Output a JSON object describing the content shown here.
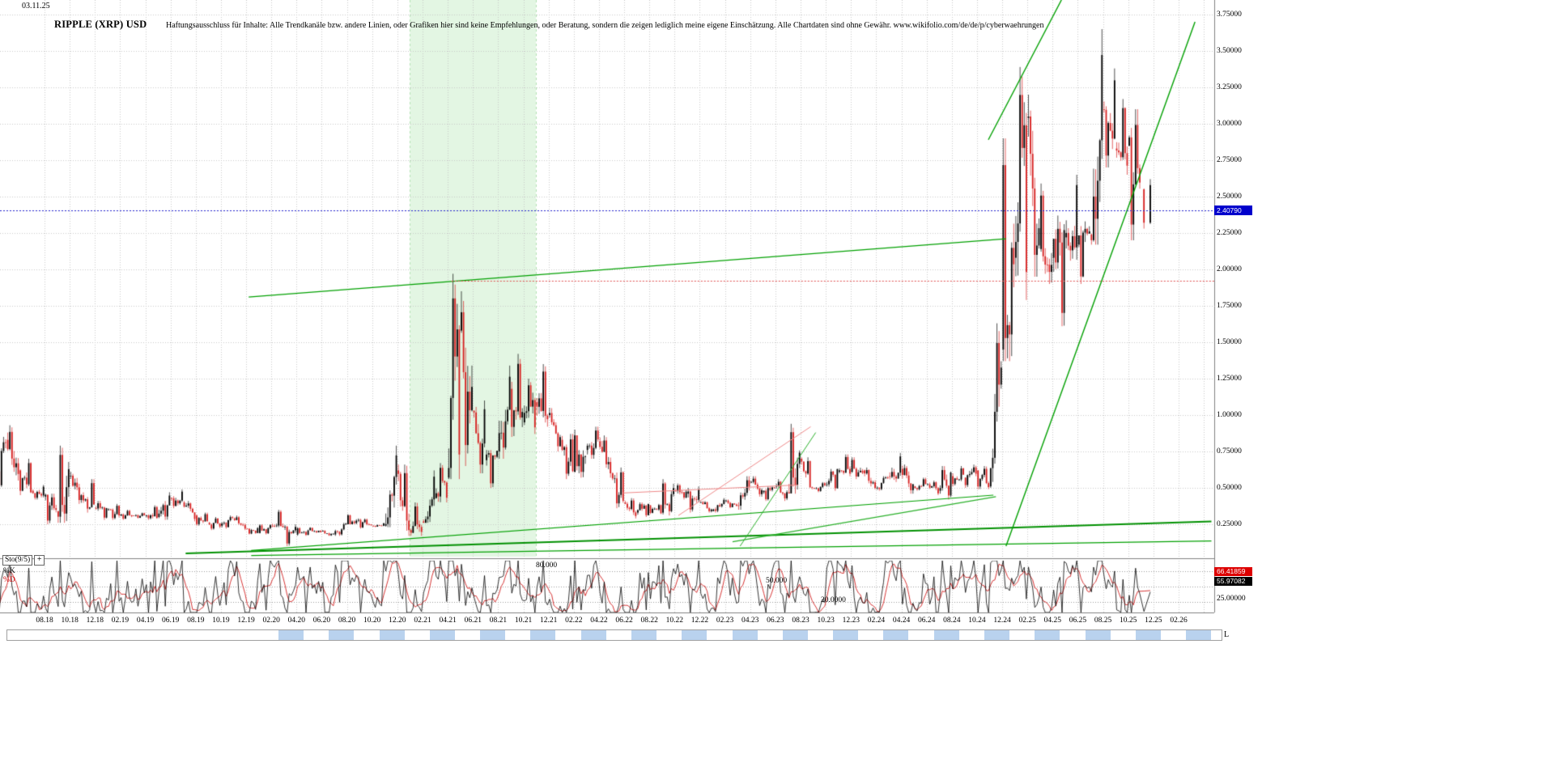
{
  "header": {
    "date": "03.11.25",
    "title": "RIPPLE (XRP) USD",
    "disclaimer": "Haftungsausschluss für Inhalte: Alle Trendkanäle bzw. andere Linien, oder Grafiken hier sind keine Empfehlungen, oder Beratung, sondern die zeigen lediglich meine eigene Einschätzung. Alle Chartdaten sind ohne Gewähr.  www.wikifolio.com/de/de/p/cyberwaehrungen"
  },
  "price_axis": {
    "ticks": [
      "3.75000",
      "3.50000",
      "3.25000",
      "3.00000",
      "2.75000",
      "2.50000",
      "2.25000",
      "2.00000",
      "1.75000",
      "1.50000",
      "1.25000",
      "1.00000",
      "0.75000",
      "0.50000",
      "0.25000"
    ],
    "badge_label": "2.40790",
    "badge_color": "#0000cc"
  },
  "time_axis": {
    "ticks": [
      "08.18",
      "10.18",
      "12.18",
      "02.19",
      "04.19",
      "06.19",
      "08.19",
      "10.19",
      "12.19",
      "02.20",
      "04.20",
      "06.20",
      "08.20",
      "10.20",
      "12.20",
      "02.21",
      "04.21",
      "06.21",
      "08.21",
      "10.21",
      "12.21",
      "02.22",
      "04.22",
      "06.22",
      "08.22",
      "10.22",
      "12.22",
      "02.23",
      "04.23",
      "06.23",
      "08.23",
      "10.23",
      "12.23",
      "02.24",
      "04.24",
      "06.24",
      "08.24",
      "10.24",
      "12.24",
      "02.25",
      "04.25",
      "06.25",
      "08.25",
      "10.25",
      "12.25",
      "02.26"
    ]
  },
  "bottom_bar": {
    "end_label": "L",
    "active_color": "#b9d2ee",
    "blank_color": "#ffffff",
    "inactive_color": "#ffffff"
  },
  "chart_data": {
    "type": "candlestick",
    "symbol": "RIPPLE (XRP) USD",
    "last_price": 2.4079,
    "price_ylim": [
      0,
      3.85
    ],
    "grid_step": 0.25,
    "t_unit": "months_since_2018-04",
    "open_first": 0.5,
    "monthly": {
      "labels": [
        "04.18",
        "05.18",
        "06.18",
        "07.18",
        "08.18",
        "09.18",
        "10.18",
        "11.18",
        "12.18",
        "01.19",
        "02.19",
        "03.19",
        "04.19",
        "05.19",
        "06.19",
        "07.19",
        "08.19",
        "09.19",
        "10.19",
        "11.19",
        "12.19",
        "01.20",
        "02.20",
        "03.20",
        "04.20",
        "05.20",
        "06.20",
        "07.20",
        "08.20",
        "09.20",
        "10.20",
        "11.20",
        "12.20",
        "01.21",
        "02.21",
        "03.21",
        "04.21",
        "05.21",
        "06.21",
        "07.21",
        "08.21",
        "09.21",
        "10.21",
        "11.21",
        "12.21",
        "01.22",
        "02.22",
        "03.22",
        "04.22",
        "05.22",
        "06.22",
        "07.22",
        "08.22",
        "09.22",
        "10.22",
        "11.22",
        "12.22",
        "01.23",
        "02.23",
        "03.23",
        "04.23",
        "05.23",
        "06.23",
        "07.23",
        "08.23",
        "09.23",
        "10.23",
        "11.23",
        "12.23",
        "01.24",
        "02.24",
        "03.24",
        "04.24",
        "05.24",
        "06.24",
        "07.24",
        "08.24",
        "09.24",
        "10.24",
        "11.24",
        "12.24",
        "01.25",
        "02.25",
        "03.25",
        "04.25",
        "05.25",
        "06.25",
        "07.25",
        "08.25",
        "09.25",
        "10.25",
        "11.25"
      ],
      "high": [
        0.94,
        0.93,
        0.7,
        0.52,
        0.46,
        0.79,
        0.61,
        0.56,
        0.41,
        0.39,
        0.35,
        0.33,
        0.38,
        0.47,
        0.49,
        0.41,
        0.33,
        0.3,
        0.31,
        0.31,
        0.23,
        0.25,
        0.35,
        0.25,
        0.23,
        0.23,
        0.21,
        0.26,
        0.32,
        0.29,
        0.26,
        0.79,
        0.66,
        0.4,
        0.62,
        0.67,
        1.97,
        1.85,
        1.1,
        0.76,
        1.34,
        1.42,
        1.25,
        1.35,
        1.05,
        0.87,
        0.9,
        0.92,
        0.86,
        0.64,
        0.43,
        0.4,
        0.39,
        0.56,
        0.53,
        0.51,
        0.41,
        0.43,
        0.42,
        0.58,
        0.58,
        0.51,
        0.56,
        0.94,
        0.71,
        0.54,
        0.63,
        0.73,
        0.71,
        0.64,
        0.58,
        0.74,
        0.66,
        0.57,
        0.55,
        0.65,
        0.65,
        0.66,
        0.65,
        1.63,
        2.9,
        3.39,
        3.2,
        2.59,
        2.37,
        2.65,
        2.33,
        3.65,
        3.38,
        3.17,
        3.1,
        2.62
      ],
      "low": [
        0.46,
        0.55,
        0.45,
        0.42,
        0.25,
        0.26,
        0.39,
        0.33,
        0.28,
        0.28,
        0.28,
        0.29,
        0.28,
        0.28,
        0.36,
        0.27,
        0.24,
        0.21,
        0.22,
        0.21,
        0.18,
        0.18,
        0.23,
        0.1,
        0.17,
        0.19,
        0.17,
        0.17,
        0.25,
        0.22,
        0.23,
        0.23,
        0.17,
        0.17,
        0.26,
        0.4,
        0.56,
        0.65,
        0.6,
        0.5,
        0.7,
        0.85,
        0.87,
        0.92,
        0.75,
        0.56,
        0.57,
        0.7,
        0.57,
        0.36,
        0.29,
        0.3,
        0.32,
        0.31,
        0.42,
        0.33,
        0.33,
        0.33,
        0.36,
        0.35,
        0.44,
        0.41,
        0.41,
        0.46,
        0.49,
        0.47,
        0.48,
        0.58,
        0.56,
        0.49,
        0.48,
        0.54,
        0.46,
        0.48,
        0.45,
        0.42,
        0.51,
        0.5,
        0.49,
        0.5,
        1.37,
        1.79,
        1.95,
        1.9,
        1.61,
        2.06,
        1.9,
        2.17,
        2.7,
        2.65,
        2.2,
        2.28
      ],
      "close": [
        0.83,
        0.62,
        0.48,
        0.44,
        0.34,
        0.58,
        0.45,
        0.36,
        0.35,
        0.31,
        0.31,
        0.31,
        0.3,
        0.43,
        0.4,
        0.31,
        0.26,
        0.24,
        0.29,
        0.22,
        0.19,
        0.24,
        0.23,
        0.18,
        0.21,
        0.2,
        0.18,
        0.25,
        0.28,
        0.24,
        0.24,
        0.62,
        0.21,
        0.27,
        0.43,
        0.57,
        1.58,
        1.03,
        0.69,
        0.75,
        1.18,
        0.95,
        1.09,
        1.0,
        0.83,
        0.61,
        0.76,
        0.82,
        0.6,
        0.4,
        0.33,
        0.38,
        0.33,
        0.48,
        0.46,
        0.4,
        0.34,
        0.41,
        0.38,
        0.54,
        0.47,
        0.51,
        0.47,
        0.7,
        0.5,
        0.52,
        0.61,
        0.61,
        0.62,
        0.5,
        0.58,
        0.63,
        0.51,
        0.52,
        0.48,
        0.58,
        0.57,
        0.62,
        0.51,
        1.45,
        2.08,
        3.04,
        2.14,
        2.08,
        2.22,
        2.17,
        2.24,
        3.1,
        2.83,
        2.85,
        2.55,
        2.41
      ]
    },
    "levels": [
      {
        "price": 2.4079,
        "color": "#2222cc",
        "dash": [
          2,
          2
        ],
        "from_t": 0
      },
      {
        "price": 1.92,
        "color": "#e05050",
        "dash": [
          2,
          2
        ],
        "from_t": 36.3
      }
    ],
    "trendlines": [
      {
        "t1": 15.2,
        "p1": 0.05,
        "t2": 96.6,
        "p2": 0.27,
        "color": "#009000",
        "width": 2
      },
      {
        "t1": 20.4,
        "p1": 0.035,
        "t2": 96.6,
        "p2": 0.135,
        "color": "#00a000",
        "width": 1.2
      },
      {
        "t1": 20.4,
        "p1": 0.07,
        "t2": 79.3,
        "p2": 0.45,
        "color": "#00a000",
        "width": 1.2
      },
      {
        "t1": 58.6,
        "p1": 0.13,
        "t2": 79.5,
        "p2": 0.44,
        "color": "#2ab02a",
        "width": 1.2
      },
      {
        "t1": 59.2,
        "p1": 0.1,
        "t2": 65.2,
        "p2": 0.88,
        "color": "#2ab02a",
        "width": 1
      },
      {
        "t1": 20.2,
        "p1": 1.81,
        "t2": 80.3,
        "p2": 2.21,
        "color": "#00a000",
        "width": 1.2
      },
      {
        "t1": 78.9,
        "p1": 2.89,
        "t2": 84.7,
        "p2": 3.85,
        "color": "#00a000",
        "width": 1.4
      },
      {
        "t1": 80.3,
        "p1": 0.1,
        "t2": 95.3,
        "p2": 3.7,
        "color": "#00a000",
        "width": 1.4
      },
      {
        "t1": 49.9,
        "p1": 0.465,
        "t2": 63.8,
        "p2": 0.52,
        "color": "#ee8888",
        "width": 1
      },
      {
        "t1": 54.3,
        "p1": 0.31,
        "t2": 64.8,
        "p2": 0.92,
        "color": "#ee8888",
        "width": 1
      }
    ],
    "highlight_band": {
      "from": "01.21",
      "to": "11.21",
      "from_t": 33,
      "to_t": 43,
      "fill": "#e3f6e3"
    },
    "stochastic": {
      "label": "Sto(9/5)",
      "plus_label": "+",
      "k_label": "%K",
      "d_label": "%D",
      "k_value": "55.97082",
      "d_value": "66.41859",
      "k_color": "#000000",
      "d_color": "#cc0000",
      "levels": [
        "80.000",
        "50.000",
        "20.0000"
      ],
      "level_values": [
        80,
        50,
        20
      ],
      "right_tick": "25.00000",
      "right_tick_value": 25
    }
  }
}
